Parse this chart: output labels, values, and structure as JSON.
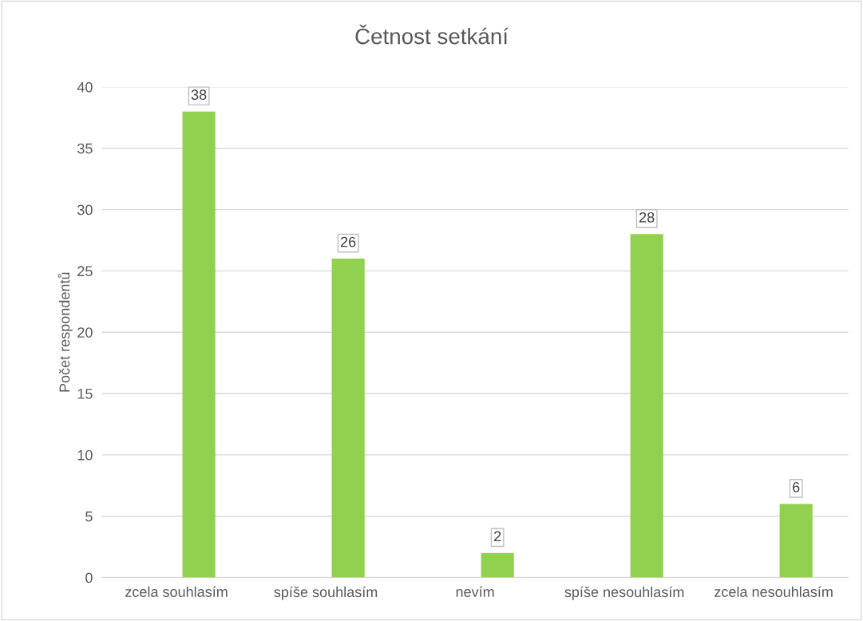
{
  "chart_data": {
    "type": "bar",
    "title": "Četnost setkání",
    "ylabel": "Počet respondentů",
    "categories": [
      "zcela souhlasím",
      "spíše souhlasím",
      "nevím",
      "spíše nesouhlasím",
      "zcela nesouhlasím"
    ],
    "values": [
      38,
      26,
      2,
      28,
      6
    ],
    "color": "#92d050",
    "ylim": [
      0,
      40
    ],
    "yticks": [
      0,
      5,
      10,
      15,
      20,
      25,
      30,
      35,
      40
    ],
    "grid": "y",
    "data_labels": true
  }
}
